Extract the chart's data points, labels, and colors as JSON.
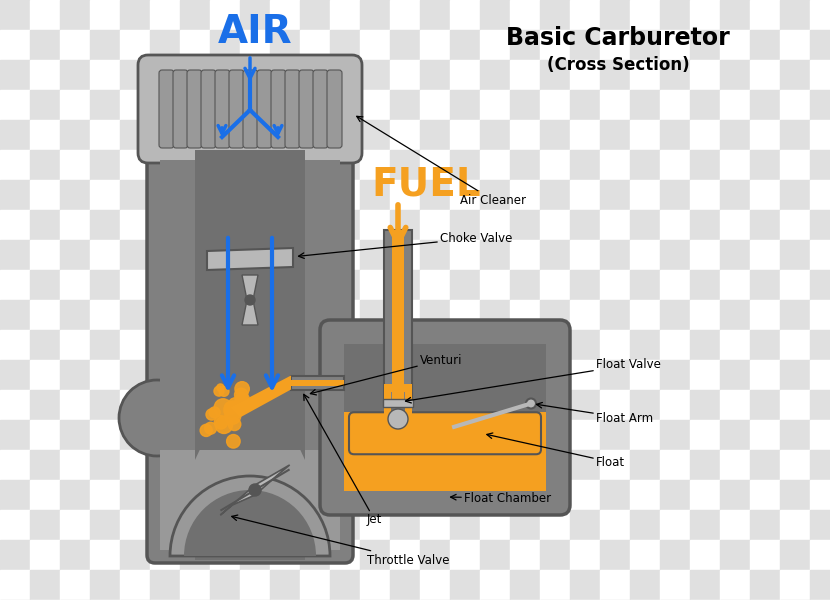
{
  "title": "Basic Carburetor",
  "subtitle": "(Cross Section)",
  "gray_body": "#808080",
  "gray_light": "#b8b8b8",
  "gray_dark": "#555555",
  "gray_mid": "#999999",
  "gray_inner": "#707070",
  "orange": "#f5a020",
  "blue": "#1a6fe8",
  "air_label": "AIR",
  "fuel_label": "FUEL",
  "checker1": "#e0e0e0",
  "checker2": "#ffffff"
}
